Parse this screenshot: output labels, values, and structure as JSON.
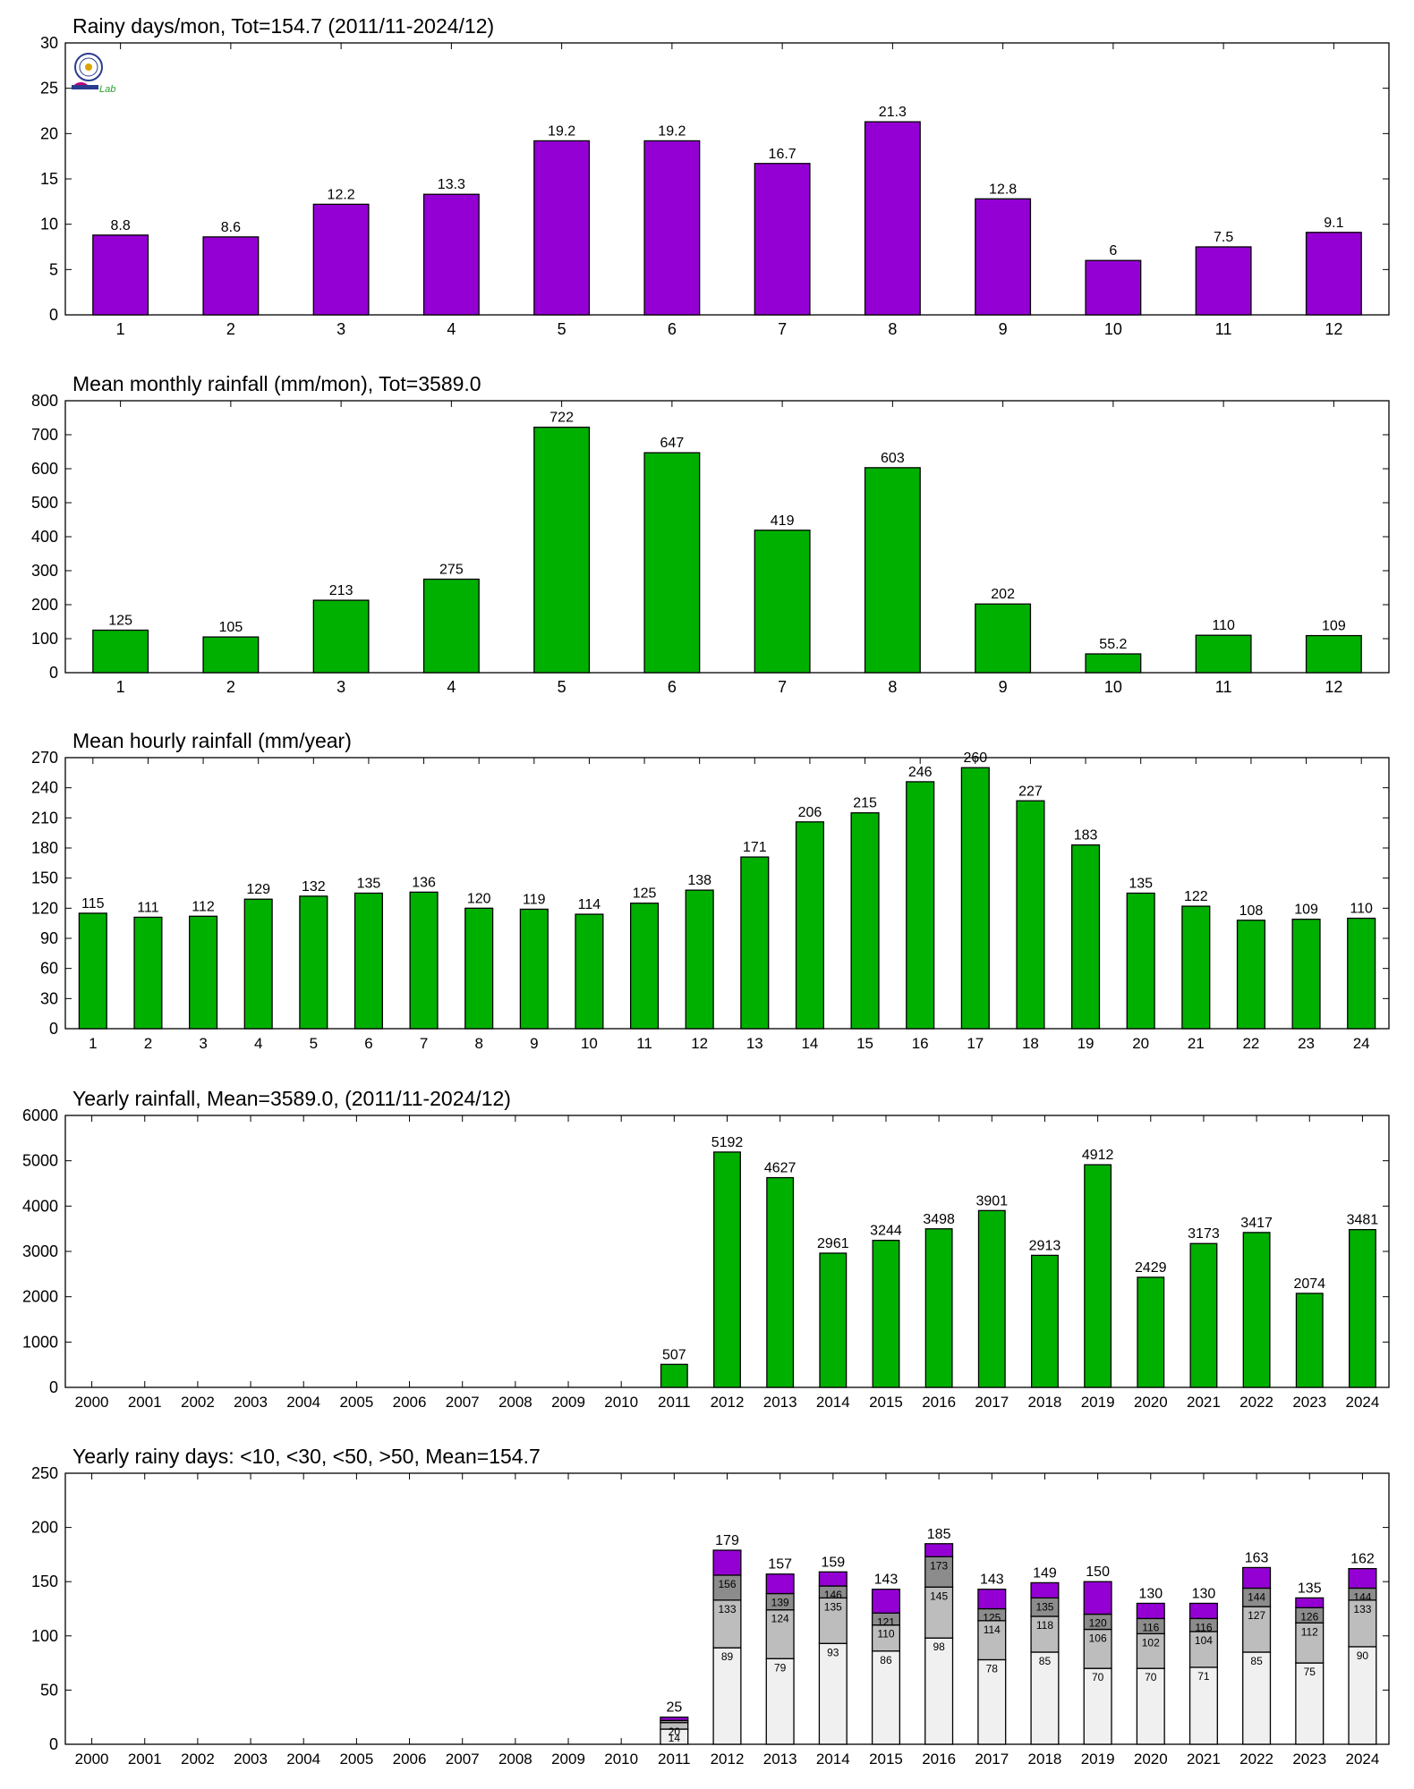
{
  "logo": {
    "text": "Lab"
  },
  "colors": {
    "purple": "#9400d3",
    "green": "#00b000",
    "dark_gray": "#8c8c8c",
    "mid_gray": "#bdbdbd",
    "light_gray": "#f0f0f0"
  },
  "chart_data": [
    {
      "type": "bar",
      "title": "Rainy days/mon, Tot=154.7 (2011/11-2024/12)",
      "categories": [
        "1",
        "2",
        "3",
        "4",
        "5",
        "6",
        "7",
        "8",
        "9",
        "10",
        "11",
        "12"
      ],
      "values": [
        8.8,
        8.6,
        12.2,
        13.3,
        19.2,
        19.2,
        16.7,
        21.3,
        12.8,
        6,
        7.5,
        9.1
      ],
      "value_labels": [
        "8.8",
        "8.6",
        "12.2",
        "13.3",
        "19.2",
        "19.2",
        "16.7",
        "21.3",
        "12.8",
        "6",
        "7.5",
        "9.1"
      ],
      "ylim": [
        0,
        30
      ],
      "yticks": [
        0,
        5,
        10,
        15,
        20,
        25,
        30
      ],
      "color": "#9400d3"
    },
    {
      "type": "bar",
      "title": "Mean monthly rainfall (mm/mon), Tot=3589.0",
      "categories": [
        "1",
        "2",
        "3",
        "4",
        "5",
        "6",
        "7",
        "8",
        "9",
        "10",
        "11",
        "12"
      ],
      "values": [
        125,
        105,
        213,
        275,
        722,
        647,
        419,
        603,
        202,
        55.2,
        110,
        109
      ],
      "value_labels": [
        "125",
        "105",
        "213",
        "275",
        "722",
        "647",
        "419",
        "603",
        "202",
        "55.2",
        "110",
        "109"
      ],
      "ylim": [
        0,
        800
      ],
      "yticks": [
        0,
        100,
        200,
        300,
        400,
        500,
        600,
        700,
        800
      ],
      "color": "#00b000"
    },
    {
      "type": "bar",
      "title": "Mean hourly rainfall (mm/year)",
      "categories": [
        "1",
        "2",
        "3",
        "4",
        "5",
        "6",
        "7",
        "8",
        "9",
        "10",
        "11",
        "12",
        "13",
        "14",
        "15",
        "16",
        "17",
        "18",
        "19",
        "20",
        "21",
        "22",
        "23",
        "24"
      ],
      "values": [
        115,
        111,
        112,
        129,
        132,
        135,
        136,
        120,
        119,
        114,
        125,
        138,
        171,
        206,
        215,
        246,
        260,
        227,
        183,
        135,
        122,
        108,
        109,
        110
      ],
      "value_labels": [
        "115",
        "111",
        "112",
        "129",
        "132",
        "135",
        "136",
        "120",
        "119",
        "114",
        "125",
        "138",
        "171",
        "206",
        "215",
        "246",
        "260",
        "227",
        "183",
        "135",
        "122",
        "108",
        "109",
        "110"
      ],
      "ylim": [
        0,
        270
      ],
      "yticks": [
        0,
        30,
        60,
        90,
        120,
        150,
        180,
        210,
        240,
        270
      ],
      "color": "#00b000"
    },
    {
      "type": "bar",
      "title": "Yearly rainfall, Mean=3589.0, (2011/11-2024/12)",
      "categories": [
        "2000",
        "2001",
        "2002",
        "2003",
        "2004",
        "2005",
        "2006",
        "2007",
        "2008",
        "2009",
        "2010",
        "2011",
        "2012",
        "2013",
        "2014",
        "2015",
        "2016",
        "2017",
        "2018",
        "2019",
        "2020",
        "2021",
        "2022",
        "2023",
        "2024"
      ],
      "values": [
        null,
        null,
        null,
        null,
        null,
        null,
        null,
        null,
        null,
        null,
        null,
        507,
        5192,
        4627,
        2961,
        3244,
        3498,
        3901,
        2913,
        4912,
        2429,
        3173,
        3417,
        2074,
        3481
      ],
      "value_labels": [
        "",
        "",
        "",
        "",
        "",
        "",
        "",
        "",
        "",
        "",
        "",
        "507",
        "5192",
        "4627",
        "2961",
        "3244",
        "3498",
        "3901",
        "2913",
        "4912",
        "2429",
        "3173",
        "3417",
        "2074",
        "3481"
      ],
      "ylim": [
        0,
        6000
      ],
      "yticks": [
        0,
        1000,
        2000,
        3000,
        4000,
        5000,
        6000
      ],
      "color": "#00b000"
    },
    {
      "type": "bar",
      "stacked": true,
      "title": "Yearly rainy days: <10, <30, <50, >50, Mean=154.7",
      "categories": [
        "2000",
        "2001",
        "2002",
        "2003",
        "2004",
        "2005",
        "2006",
        "2007",
        "2008",
        "2009",
        "2010",
        "2011",
        "2012",
        "2013",
        "2014",
        "2015",
        "2016",
        "2017",
        "2018",
        "2019",
        "2020",
        "2021",
        "2022",
        "2023",
        "2024"
      ],
      "cumulative": {
        "lt10": [
          null,
          null,
          null,
          null,
          null,
          null,
          null,
          null,
          null,
          null,
          null,
          14,
          89,
          79,
          93,
          86,
          98,
          78,
          85,
          70,
          70,
          71,
          85,
          75,
          90
        ],
        "lt30": [
          null,
          null,
          null,
          null,
          null,
          null,
          null,
          null,
          null,
          null,
          null,
          20,
          133,
          124,
          135,
          110,
          145,
          114,
          118,
          106,
          102,
          104,
          127,
          112,
          133
        ],
        "lt50": [
          null,
          null,
          null,
          null,
          null,
          null,
          null,
          null,
          null,
          null,
          null,
          22,
          156,
          139,
          146,
          121,
          173,
          125,
          135,
          120,
          116,
          116,
          144,
          126,
          144
        ],
        "total": [
          null,
          null,
          null,
          null,
          null,
          null,
          null,
          null,
          null,
          null,
          null,
          25,
          179,
          157,
          159,
          143,
          185,
          143,
          149,
          150,
          130,
          130,
          163,
          135,
          162
        ]
      },
      "labels": {
        "lt10": [
          "",
          "",
          "",
          "",
          "",
          "",
          "",
          "",
          "",
          "",
          "",
          "14",
          "89",
          "79",
          "93",
          "86",
          "98",
          "78",
          "85",
          "70",
          "70",
          "71",
          "85",
          "75",
          "90"
        ],
        "lt30": [
          "",
          "",
          "",
          "",
          "",
          "",
          "",
          "",
          "",
          "",
          "",
          "20",
          "133",
          "124",
          "135",
          "110",
          "145",
          "114",
          "118",
          "106",
          "102",
          "104",
          "127",
          "112",
          "133"
        ],
        "lt50": [
          "",
          "",
          "",
          "",
          "",
          "",
          "",
          "",
          "",
          "",
          "",
          "",
          "156",
          "139",
          "146",
          "121",
          "173",
          "125",
          "135",
          "120",
          "116",
          "116",
          "144",
          "126",
          "144"
        ],
        "total": [
          "",
          "",
          "",
          "",
          "",
          "",
          "",
          "",
          "",
          "",
          "",
          "25",
          "179",
          "157",
          "159",
          "143",
          "185",
          "143",
          "149",
          "150",
          "130",
          "130",
          "163",
          "135",
          "162"
        ]
      },
      "ylim": [
        0,
        250
      ],
      "yticks": [
        0,
        50,
        100,
        150,
        200,
        250
      ],
      "colors": [
        "#f0f0f0",
        "#bdbdbd",
        "#8c8c8c",
        "#9400d3"
      ]
    }
  ]
}
